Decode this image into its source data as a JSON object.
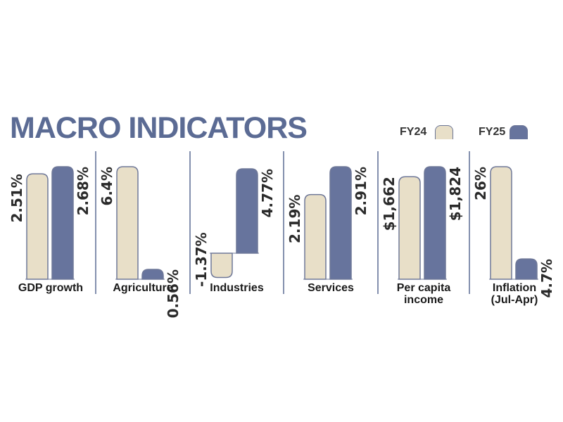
{
  "title": "MACRO INDICATORS",
  "colors": {
    "fy24": "#e8dfc8",
    "fy25": "#67749d",
    "border": "#6f7898",
    "divider": "#5b6b94"
  },
  "chart_data": {
    "type": "bar",
    "series": [
      {
        "name": "FY24",
        "values": [
          2.51,
          6.4,
          -1.37,
          2.19,
          1662,
          26
        ]
      },
      {
        "name": "FY25",
        "values": [
          2.68,
          0.56,
          4.77,
          2.91,
          1824,
          4.7
        ]
      }
    ],
    "panels": [
      {
        "category": [
          "GDP growth"
        ],
        "labels": [
          "2.51%",
          "2.68%"
        ]
      },
      {
        "category": [
          "Agriculture"
        ],
        "labels": [
          "6.4%",
          "0.56%"
        ]
      },
      {
        "category": [
          "Industries"
        ],
        "labels": [
          "-1.37%",
          "4.77%"
        ]
      },
      {
        "category": [
          "Services"
        ],
        "labels": [
          "2.19%",
          "2.91%"
        ]
      },
      {
        "category": [
          "Per capita",
          "income"
        ],
        "labels": [
          "$1,662",
          "$1,824"
        ]
      },
      {
        "category": [
          "Inflation",
          "(Jul-Apr)"
        ],
        "labels": [
          "26%",
          "4.7%"
        ]
      }
    ],
    "legend_position": "top-right",
    "grid": false
  }
}
